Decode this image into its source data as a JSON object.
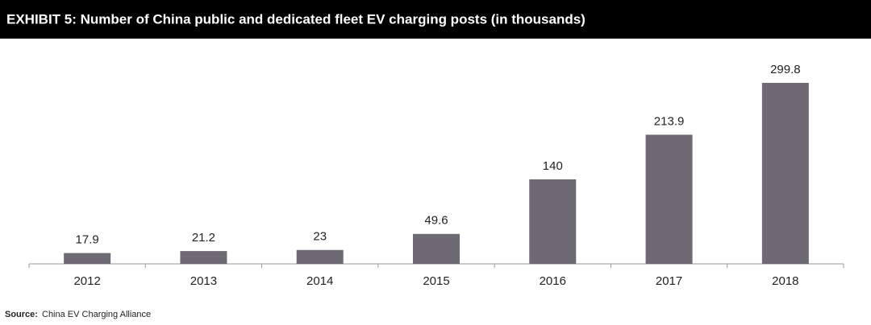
{
  "chart_data": {
    "type": "bar",
    "title": "EXHIBIT 5: Number of China public and dedicated fleet EV charging posts (in thousands)",
    "categories": [
      "2012",
      "2013",
      "2014",
      "2015",
      "2016",
      "2017",
      "2018"
    ],
    "values": [
      17.9,
      21.2,
      23,
      49.6,
      140,
      213.9,
      299.8
    ],
    "color": "#6d6a73",
    "source_label": "Source:",
    "source": "China EV Charging Alliance"
  }
}
